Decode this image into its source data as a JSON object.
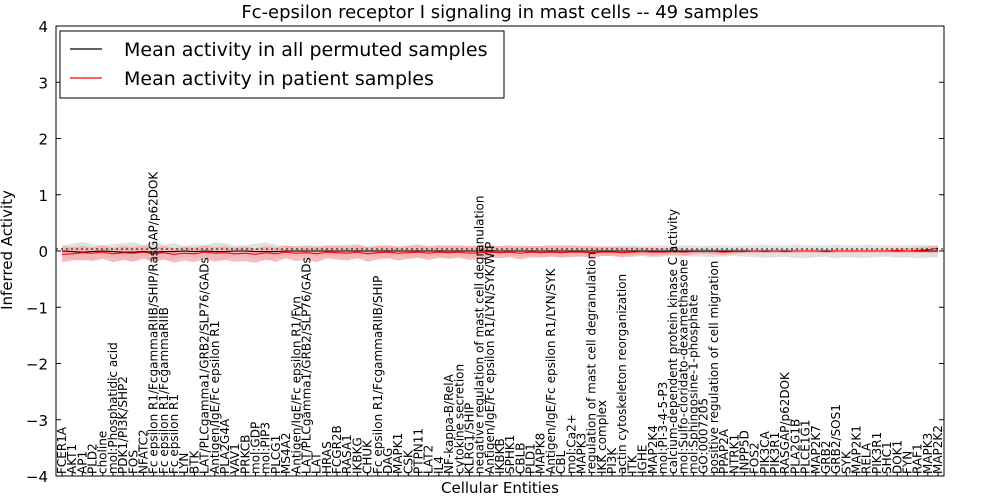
{
  "chart_data": {
    "type": "line",
    "title": "Fc-epsilon receptor I signaling in mast cells -- 49 samples",
    "xlabel": "Cellular Entities",
    "ylabel": "Inferred Activity",
    "ylim": [
      -4,
      4
    ],
    "yticks": [
      -4,
      -3,
      -2,
      -1,
      0,
      1,
      2,
      3,
      4
    ],
    "legend_position": "top-left",
    "colors": {
      "permuted": "#000000",
      "permuted_band": "#d9d9d9",
      "patient": "#ff0000",
      "patient_band": "#f4a6a6"
    },
    "categories": [
      "FCER1A",
      "AKT1",
      "AP1",
      "PLD2",
      "choline",
      "mol:Phosphatidic acid",
      "PDK1/PI3K/SHP2",
      "FOS",
      "NFATC2",
      "Fc epsilon R1/FcgammaRIIB/SHIP/RasGAP/p62DOK",
      "Fc epsilon R1/FcgammaRIIB",
      "Fc epsilon R1",
      "LYN",
      "BTK",
      "LAT/PLCgamma1/GRB2/SLP76/GADs",
      "Antigen/IgE/Fc epsilon R1",
      "PLA2G4A",
      "VAV1",
      "PRKCB",
      "mol:GDP",
      "mol:PIP3",
      "PLCG1",
      "MS4A2",
      "Antigen/IgE/Fc epsilon R1/Fyn",
      "LAT/PLCgamma1/GRB2/SLP76/GADs",
      "LAT",
      "HRAS",
      "FCGR2B",
      "RASA1",
      "IKBKG",
      "CHUK",
      "Fc epsilon R1/FcgammaRIIB/SHIP",
      "DAG",
      "MAPK1",
      "CSK",
      "PTPN11",
      "LAT2",
      "IL4",
      "NF-kappa-B/RelA",
      "cytokine secretion",
      "KLRG1/SHIP",
      "negative regulation of mast cell degranulation",
      "Antigen/IgE/Fc epsilon R1/LYN/SYK/WIP",
      "IKBKB",
      "SPHK1",
      "CBLB",
      "PLD1",
      "MAPK8",
      "Antigen/IgE/Fc epsilon R1/LYN/SYK",
      "CBL",
      "mol:Ca2+",
      "MAPK3",
      "regulation of mast cell degranulation",
      "IKK complex",
      "PI3K",
      "actin cytoskeleton reorganization",
      "ITK",
      "IGHE",
      "MAP2K4",
      "mol:PI-3-4-5-P3",
      "calcium-dependent protein kinase C activity",
      "mol:Sulfo-cloridato-dexamethasone",
      "mol:Sphingosine-1-phosphate",
      "GO:0007205",
      "positive regulation of cell migration",
      "PPAP2A",
      "NTRK1",
      "INPP5D",
      "FOS2",
      "PIK3CA",
      "PIK3R1",
      "RASGAP/p62DOK",
      "PLA2G1B",
      "PLCE1G1",
      "MAP2K7",
      "GRB2",
      "GRB2/SOS1",
      "SYK",
      "MAP2K1",
      "RELA",
      "PIK3R1",
      "SHC1",
      "DOK1",
      "FYN",
      "RAF1",
      "MAPK3",
      "MAP2K2"
    ],
    "series": [
      {
        "name": "Mean activity in all permuted samples",
        "values": [
          0.0,
          -0.01,
          -0.02,
          -0.01,
          0.0,
          -0.01,
          -0.02,
          -0.02,
          -0.01,
          -0.02,
          -0.01,
          -0.01,
          0.0,
          -0.01,
          0.0,
          -0.01,
          -0.01,
          0.0,
          0.0,
          -0.01,
          -0.01,
          -0.01,
          0.0,
          0.0,
          0.0,
          0.0,
          0.0,
          0.0,
          0.0,
          0.0,
          0.0,
          0.0,
          0.0,
          0.0,
          0.0,
          0.0,
          0.0,
          0.0,
          0.0,
          0.0,
          0.0,
          0.0,
          0.0,
          0.0,
          0.0,
          0.0,
          0.0,
          0.0,
          0.0,
          0.0,
          0.0,
          0.0,
          0.0,
          0.0,
          0.0,
          0.0,
          0.0,
          0.0,
          0.0,
          0.0,
          0.0,
          0.0,
          0.0,
          0.0,
          0.0,
          0.0,
          0.0,
          0.0,
          0.0,
          0.0,
          0.0,
          0.0,
          0.0,
          0.0,
          0.0,
          0.0,
          0.0,
          0.0,
          0.0,
          0.0,
          0.0,
          0.0,
          0.0,
          0.0,
          0.0,
          0.0,
          0.0
        ]
      },
      {
        "name": "Mean activity in patient samples",
        "values": [
          -0.06,
          -0.05,
          -0.03,
          -0.04,
          -0.02,
          -0.05,
          -0.03,
          -0.04,
          -0.02,
          -0.05,
          -0.03,
          -0.06,
          -0.04,
          -0.05,
          -0.02,
          -0.04,
          -0.03,
          -0.05,
          -0.04,
          -0.06,
          -0.03,
          -0.05,
          -0.02,
          -0.04,
          -0.03,
          -0.05,
          -0.02,
          -0.03,
          -0.04,
          -0.02,
          -0.05,
          -0.03,
          -0.02,
          -0.04,
          -0.03,
          -0.02,
          -0.04,
          -0.02,
          -0.03,
          -0.02,
          -0.04,
          -0.03,
          -0.02,
          -0.03,
          -0.02,
          -0.04,
          -0.02,
          -0.03,
          -0.02,
          -0.03,
          -0.02,
          -0.02,
          -0.03,
          -0.02,
          -0.02,
          -0.03,
          -0.02,
          -0.01,
          -0.02,
          -0.02,
          -0.01,
          -0.02,
          -0.01,
          -0.01,
          -0.01,
          -0.02,
          -0.01,
          -0.01,
          0.0,
          -0.01,
          0.0,
          -0.01,
          0.0,
          0.0,
          0.0,
          -0.01,
          0.0,
          0.0,
          0.0,
          0.0,
          0.0,
          0.0,
          0.01,
          0.0,
          0.01,
          0.02,
          0.05
        ]
      }
    ],
    "bands": [
      {
        "name": "permuted spread",
        "lower": [
          -0.1,
          -0.14,
          -0.18,
          -0.13,
          -0.1,
          -0.12,
          -0.16,
          -0.18,
          -0.1,
          -0.19,
          -0.12,
          -0.15,
          -0.1,
          -0.13,
          -0.11,
          -0.16,
          -0.15,
          -0.11,
          -0.1,
          -0.14,
          -0.17,
          -0.12,
          -0.1,
          -0.09,
          -0.11,
          -0.1,
          -0.09,
          -0.1,
          -0.11,
          -0.12,
          -0.09,
          -0.1,
          -0.11,
          -0.08,
          -0.1,
          -0.12,
          -0.09,
          -0.1,
          -0.11,
          -0.09,
          -0.1,
          -0.1,
          -0.1,
          -0.09,
          -0.08,
          -0.1,
          -0.1,
          -0.09,
          -0.1,
          -0.1,
          -0.11,
          -0.09,
          -0.1,
          -0.08,
          -0.09,
          -0.1,
          -0.11,
          -0.09,
          -0.12,
          -0.1,
          -0.09,
          -0.1,
          -0.1,
          -0.1,
          -0.11,
          -0.1,
          -0.09,
          -0.1,
          -0.11,
          -0.12,
          -0.11,
          -0.1,
          -0.12,
          -0.13,
          -0.11,
          -0.1,
          -0.13,
          -0.11,
          -0.12,
          -0.12,
          -0.11,
          -0.1,
          -0.12,
          -0.11,
          -0.13,
          -0.12,
          -0.11
        ],
        "upper": [
          0.1,
          0.13,
          0.16,
          0.12,
          0.1,
          0.12,
          0.14,
          0.16,
          0.1,
          0.17,
          0.11,
          0.14,
          0.09,
          0.12,
          0.1,
          0.15,
          0.14,
          0.1,
          0.1,
          0.13,
          0.15,
          0.11,
          0.09,
          0.09,
          0.1,
          0.1,
          0.09,
          0.1,
          0.11,
          0.12,
          0.09,
          0.1,
          0.1,
          0.08,
          0.1,
          0.12,
          0.09,
          0.1,
          0.1,
          0.09,
          0.1,
          0.1,
          0.09,
          0.09,
          0.08,
          0.1,
          0.09,
          0.09,
          0.1,
          0.1,
          0.1,
          0.09,
          0.1,
          0.08,
          0.09,
          0.1,
          0.1,
          0.09,
          0.1,
          0.1,
          0.09,
          0.1,
          0.1,
          0.09,
          0.1,
          0.1,
          0.09,
          0.1,
          0.1,
          0.11,
          0.1,
          0.1,
          0.11,
          0.1,
          0.1,
          0.1,
          0.11,
          0.1,
          0.1,
          0.11,
          0.1,
          0.1,
          0.1,
          0.1,
          0.11,
          0.1,
          0.1
        ]
      },
      {
        "name": "patient spread",
        "lower": [
          -0.2,
          -0.17,
          -0.15,
          -0.18,
          -0.14,
          -0.2,
          -0.16,
          -0.19,
          -0.14,
          -0.19,
          -0.15,
          -0.21,
          -0.17,
          -0.2,
          -0.14,
          -0.19,
          -0.16,
          -0.19,
          -0.18,
          -0.21,
          -0.15,
          -0.19,
          -0.13,
          -0.18,
          -0.15,
          -0.2,
          -0.13,
          -0.15,
          -0.17,
          -0.13,
          -0.19,
          -0.15,
          -0.13,
          -0.17,
          -0.14,
          -0.12,
          -0.16,
          -0.12,
          -0.14,
          -0.12,
          -0.16,
          -0.14,
          -0.11,
          -0.13,
          -0.11,
          -0.15,
          -0.11,
          -0.12,
          -0.1,
          -0.12,
          -0.1,
          -0.1,
          -0.12,
          -0.09,
          -0.09,
          -0.11,
          -0.09,
          -0.07,
          -0.09,
          -0.08,
          -0.06,
          -0.08,
          -0.06,
          -0.05,
          -0.06,
          -0.07,
          -0.05,
          -0.04,
          -0.03,
          -0.04,
          -0.03,
          -0.04,
          -0.03,
          -0.03,
          -0.03,
          -0.04,
          -0.03,
          -0.03,
          -0.03,
          -0.03,
          -0.03,
          -0.03,
          -0.03,
          -0.03,
          -0.03,
          -0.04,
          -0.04
        ],
        "upper": [
          0.09,
          0.07,
          0.09,
          0.06,
          0.1,
          0.06,
          0.09,
          0.07,
          0.1,
          0.06,
          0.09,
          0.05,
          0.08,
          0.06,
          0.1,
          0.07,
          0.09,
          0.06,
          0.08,
          0.05,
          0.09,
          0.06,
          0.1,
          0.08,
          0.09,
          0.07,
          0.1,
          0.09,
          0.08,
          0.1,
          0.07,
          0.09,
          0.1,
          0.08,
          0.09,
          0.1,
          0.08,
          0.1,
          0.09,
          0.1,
          0.08,
          0.09,
          0.1,
          0.09,
          0.1,
          0.08,
          0.09,
          0.09,
          0.1,
          0.09,
          0.1,
          0.09,
          0.08,
          0.08,
          0.08,
          0.07,
          0.07,
          0.06,
          0.06,
          0.05,
          0.05,
          0.04,
          0.04,
          0.04,
          0.03,
          0.03,
          0.03,
          0.03,
          0.03,
          0.02,
          0.03,
          0.02,
          0.03,
          0.03,
          0.03,
          0.02,
          0.03,
          0.03,
          0.03,
          0.03,
          0.04,
          0.04,
          0.05,
          0.05,
          0.06,
          0.08,
          0.1
        ]
      }
    ]
  }
}
